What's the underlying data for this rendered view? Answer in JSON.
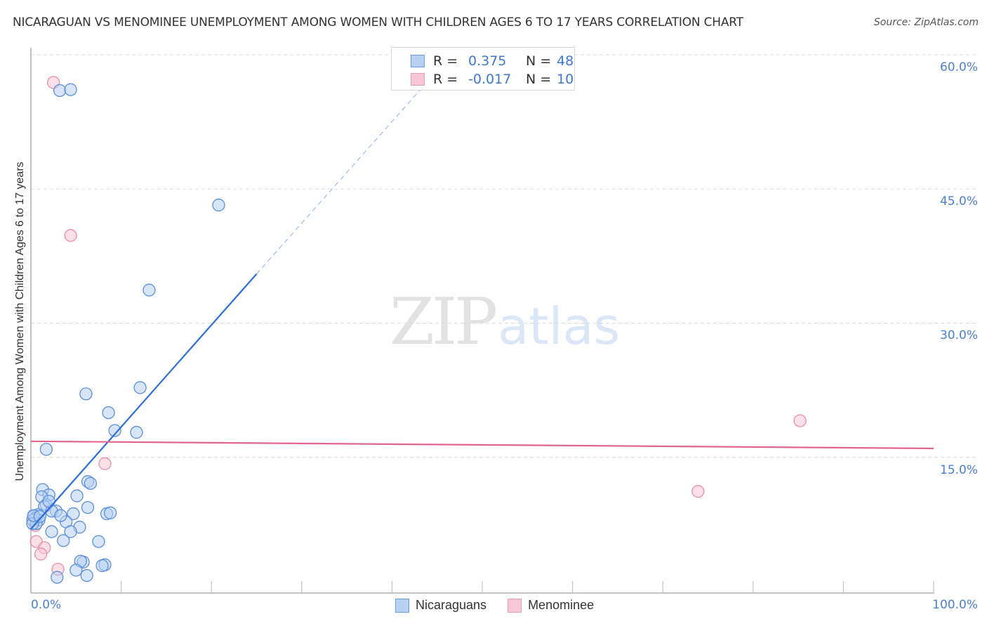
{
  "header": {
    "title": "NICARAGUAN VS MENOMINEE UNEMPLOYMENT AMONG WOMEN WITH CHILDREN AGES 6 TO 17 YEARS CORRELATION CHART",
    "source": "Source: ZipAtlas.com"
  },
  "watermark": {
    "zip": "ZIP",
    "atlas": "atlas"
  },
  "axes": {
    "ylabel": "Unemployment Among Women with Children Ages 6 to 17 years",
    "y_ticks": [
      "60.0%",
      "45.0%",
      "30.0%",
      "15.0%"
    ],
    "x_ticks": [
      "0.0%",
      "100.0%"
    ]
  },
  "legend": {
    "rows": [
      {
        "r_label": "R =",
        "r_value": "0.375",
        "n_label": "N =",
        "n_value": "48"
      },
      {
        "r_label": "R =",
        "r_value": "-0.017",
        "n_label": "N =",
        "n_value": "10"
      }
    ],
    "series": [
      "Nicaraguans",
      "Menominee"
    ]
  },
  "colors": {
    "nicaraguans_fill": "#b8d0f2",
    "nicaraguans_stroke": "#5b8fdc",
    "nicaraguans_line": "#2a6fd6",
    "menominee_fill": "#f9c6d5",
    "menominee_stroke": "#e68fab",
    "menominee_line": "#e0668f",
    "tick_text": "#4a7fd1"
  },
  "chart_data": {
    "type": "scatter",
    "title": "NICARAGUAN VS MENOMINEE UNEMPLOYMENT AMONG WOMEN WITH CHILDREN AGES 6 TO 17 YEARS CORRELATION CHART",
    "xlabel": "",
    "ylabel": "Unemployment Among Women with Children Ages 6 to 17 years",
    "xlim": [
      0,
      100
    ],
    "ylim": [
      0,
      62
    ],
    "x_ticks": [
      0,
      100
    ],
    "y_ticks": [
      15,
      30,
      45,
      60
    ],
    "grid": "horizontal dashed",
    "legend_position": "top-center and bottom-center",
    "series": [
      {
        "name": "Nicaraguans",
        "R": 0.375,
        "N": 48,
        "trend": {
          "x0": 0,
          "y0": 7.0,
          "x1": 25.0,
          "y1": 35.5,
          "dashed_extension_to": [
            43.5,
            56.5
          ]
        },
        "points": [
          [
            3.2,
            56.0
          ],
          [
            4.4,
            56.1
          ],
          [
            20.8,
            43.2
          ],
          [
            13.1,
            33.7
          ],
          [
            6.1,
            22.1
          ],
          [
            12.1,
            22.8
          ],
          [
            8.6,
            20.0
          ],
          [
            9.3,
            18.0
          ],
          [
            11.7,
            17.8
          ],
          [
            1.7,
            15.9
          ],
          [
            1.3,
            11.4
          ],
          [
            6.3,
            12.3
          ],
          [
            6.6,
            12.1
          ],
          [
            2.0,
            10.8
          ],
          [
            1.2,
            10.6
          ],
          [
            5.1,
            10.7
          ],
          [
            1.7,
            9.7
          ],
          [
            1.5,
            9.5
          ],
          [
            2.8,
            9.0
          ],
          [
            2.3,
            9.0
          ],
          [
            4.7,
            8.7
          ],
          [
            6.3,
            9.4
          ],
          [
            8.4,
            8.7
          ],
          [
            8.8,
            8.8
          ],
          [
            0.8,
            8.6
          ],
          [
            0.3,
            8.4
          ],
          [
            0.5,
            8.2
          ],
          [
            0.9,
            8.0
          ],
          [
            0.2,
            8.0
          ],
          [
            0.6,
            7.6
          ],
          [
            3.9,
            7.8
          ],
          [
            5.4,
            7.2
          ],
          [
            4.4,
            6.7
          ],
          [
            2.3,
            6.7
          ],
          [
            0.2,
            7.6
          ],
          [
            3.6,
            5.7
          ],
          [
            7.5,
            5.6
          ],
          [
            0.3,
            8.5
          ],
          [
            5.8,
            3.3
          ],
          [
            5.5,
            3.4
          ],
          [
            8.2,
            3.0
          ],
          [
            7.9,
            2.9
          ],
          [
            5.0,
            2.4
          ],
          [
            2.9,
            1.6
          ],
          [
            6.2,
            1.8
          ],
          [
            1.0,
            8.4
          ],
          [
            3.3,
            8.5
          ],
          [
            2.0,
            10.1
          ]
        ]
      },
      {
        "name": "Menominee",
        "R": -0.017,
        "N": 10,
        "trend": {
          "x0": 0,
          "y0": 16.8,
          "x1": 100,
          "y1": 16.0
        },
        "points": [
          [
            2.5,
            56.9
          ],
          [
            4.4,
            39.8
          ],
          [
            8.2,
            14.3
          ],
          [
            85.2,
            19.1
          ],
          [
            73.9,
            11.2
          ],
          [
            0.6,
            5.6
          ],
          [
            1.5,
            4.9
          ],
          [
            1.1,
            4.2
          ],
          [
            3.0,
            2.5
          ],
          [
            0.5,
            7.4
          ]
        ]
      }
    ]
  }
}
